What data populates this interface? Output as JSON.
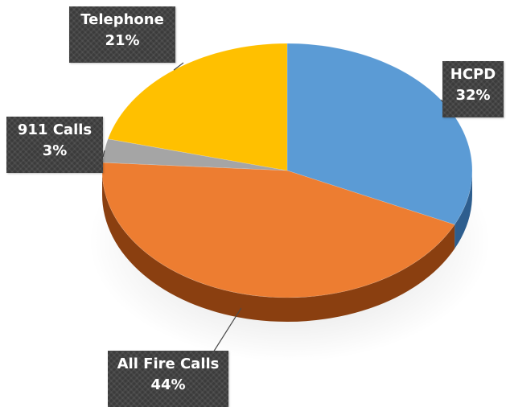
{
  "chart_data": {
    "type": "pie",
    "categories": [
      "HCPD",
      "All Fire Calls",
      "911 Calls",
      "Telephone"
    ],
    "values": [
      32,
      44,
      3,
      21
    ],
    "labels": [
      {
        "name": "HCPD",
        "value": "32%"
      },
      {
        "name": "All Fire Calls",
        "value": "44%"
      },
      {
        "name": "911 Calls",
        "value": "3%"
      },
      {
        "name": "Telephone",
        "value": "21%"
      }
    ],
    "colors": [
      "#5B9BD5",
      "#ED7D31",
      "#A5A5A5",
      "#FFC000"
    ],
    "side_colors": [
      "#2E5E8E",
      "#8A3F10",
      "#6E6E6E",
      "#B88A00"
    ],
    "title": "",
    "legend": "none",
    "style": "3d"
  }
}
